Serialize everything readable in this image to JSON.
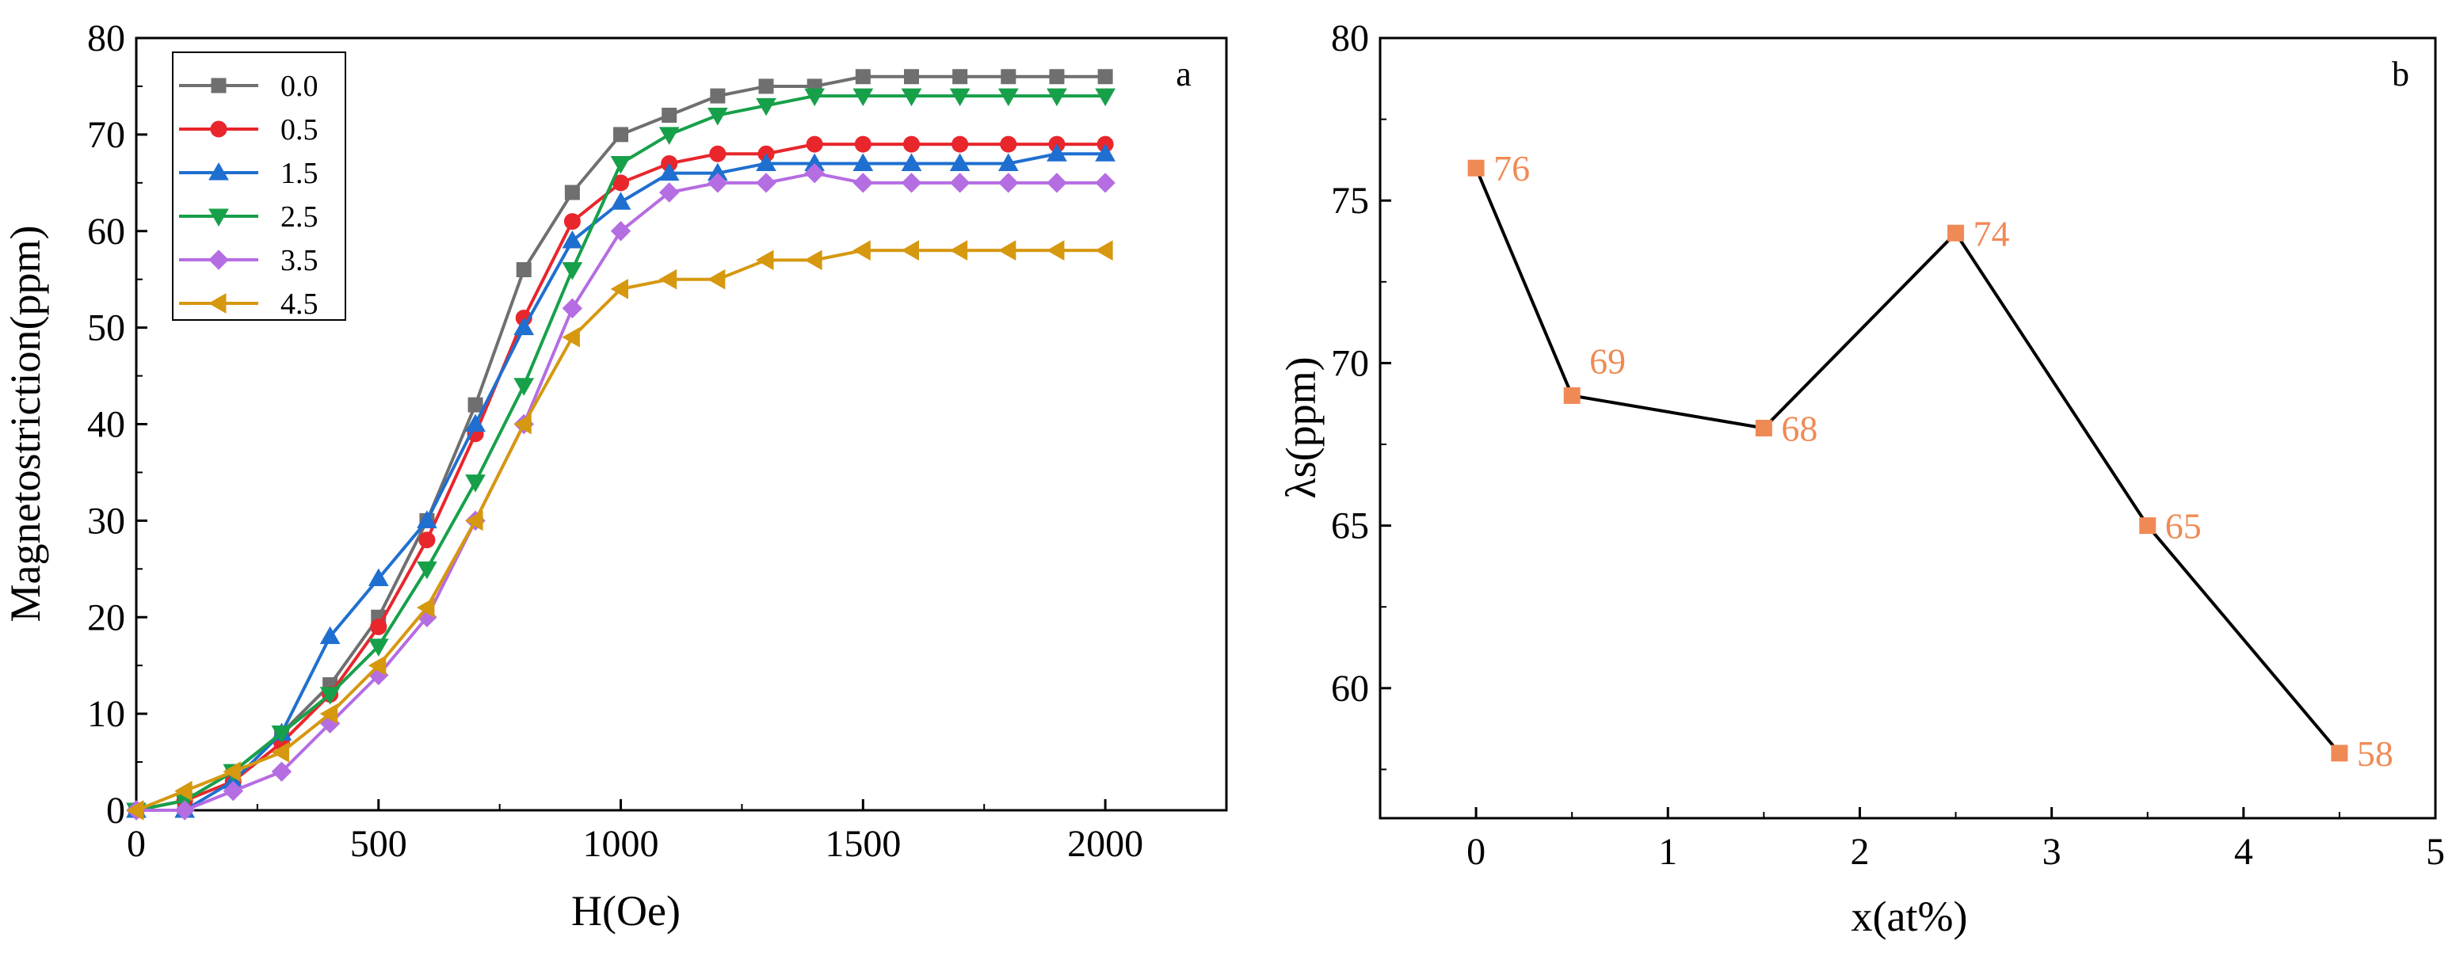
{
  "chart_data": [
    {
      "type": "line",
      "panel_label": "a",
      "title": "",
      "xlabel": "H(Oe)",
      "ylabel": "Magnetostriction(ppm)",
      "xlim": [
        0,
        2250
      ],
      "ylim": [
        0,
        80
      ],
      "xticks": [
        0,
        500,
        1000,
        1500,
        2000
      ],
      "yticks": [
        0,
        10,
        20,
        30,
        40,
        50,
        60,
        70,
        80
      ],
      "grid": false,
      "legend_position": "top-left",
      "x": [
        0,
        100,
        200,
        300,
        400,
        500,
        600,
        700,
        800,
        900,
        1000,
        1100,
        1200,
        1300,
        1400,
        1500,
        1600,
        1700,
        1800,
        1900,
        2000
      ],
      "series": [
        {
          "name": "0.0",
          "color": "#6f6f6f",
          "marker": "square",
          "values": [
            0,
            1,
            4,
            8,
            13,
            20,
            30,
            42,
            56,
            64,
            70,
            72,
            74,
            75,
            75,
            76,
            76,
            76,
            76,
            76,
            76
          ]
        },
        {
          "name": "0.5",
          "color": "#e8262c",
          "marker": "circle",
          "values": [
            0,
            1,
            3,
            7,
            12,
            19,
            28,
            39,
            51,
            61,
            65,
            67,
            68,
            68,
            69,
            69,
            69,
            69,
            69,
            69,
            69
          ]
        },
        {
          "name": "1.5",
          "color": "#1f6fd0",
          "marker": "triangle-up",
          "values": [
            0,
            0,
            3,
            8,
            18,
            24,
            30,
            40,
            50,
            59,
            63,
            66,
            66,
            67,
            67,
            67,
            67,
            67,
            67,
            68,
            68
          ]
        },
        {
          "name": "2.5",
          "color": "#17a04a",
          "marker": "triangle-down",
          "values": [
            0,
            1,
            4,
            8,
            12,
            17,
            25,
            34,
            44,
            56,
            67,
            70,
            72,
            73,
            74,
            74,
            74,
            74,
            74,
            74,
            74
          ]
        },
        {
          "name": "3.5",
          "color": "#b56de2",
          "marker": "diamond",
          "values": [
            0,
            0,
            2,
            4,
            9,
            14,
            20,
            30,
            40,
            52,
            60,
            64,
            65,
            65,
            66,
            65,
            65,
            65,
            65,
            65,
            65
          ]
        },
        {
          "name": "4.5",
          "color": "#d6980f",
          "marker": "triangle-left",
          "values": [
            0,
            2,
            4,
            6,
            10,
            15,
            21,
            30,
            40,
            49,
            54,
            55,
            55,
            57,
            57,
            58,
            58,
            58,
            58,
            58,
            58
          ]
        }
      ]
    },
    {
      "type": "line",
      "panel_label": "b",
      "title": "",
      "xlabel": "x(at%)",
      "ylabel": "λs(ppm)",
      "xlim": [
        -0.5,
        5
      ],
      "ylim": [
        56,
        80
      ],
      "xticks": [
        0,
        1,
        2,
        3,
        4,
        5
      ],
      "yticks": [
        60,
        65,
        70,
        75,
        80
      ],
      "grid": false,
      "series": [
        {
          "name": "λs",
          "line_color": "#000000",
          "marker_color": "#f08a55",
          "marker": "square",
          "x": [
            0,
            0.5,
            1.5,
            2.5,
            3.5,
            4.5
          ],
          "values": [
            76,
            69,
            68,
            74,
            65,
            58
          ],
          "labels": [
            "76",
            "69",
            "68",
            "74",
            "65",
            "58"
          ]
        }
      ]
    }
  ]
}
